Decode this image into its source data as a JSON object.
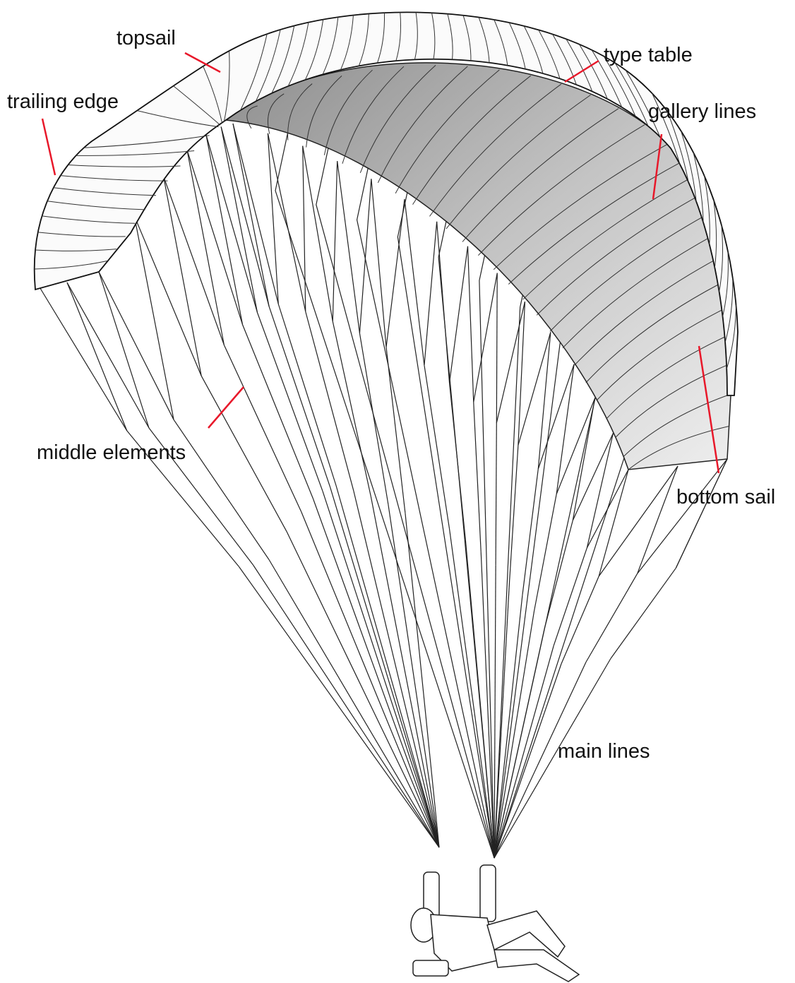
{
  "labels": [
    {
      "text": "topsail"
    },
    {
      "text": "type table"
    },
    {
      "text": "trailing edge"
    },
    {
      "text": "gallery lines"
    },
    {
      "text": "middle elements"
    },
    {
      "text": "bottom sail"
    },
    {
      "text": "main lines"
    }
  ]
}
